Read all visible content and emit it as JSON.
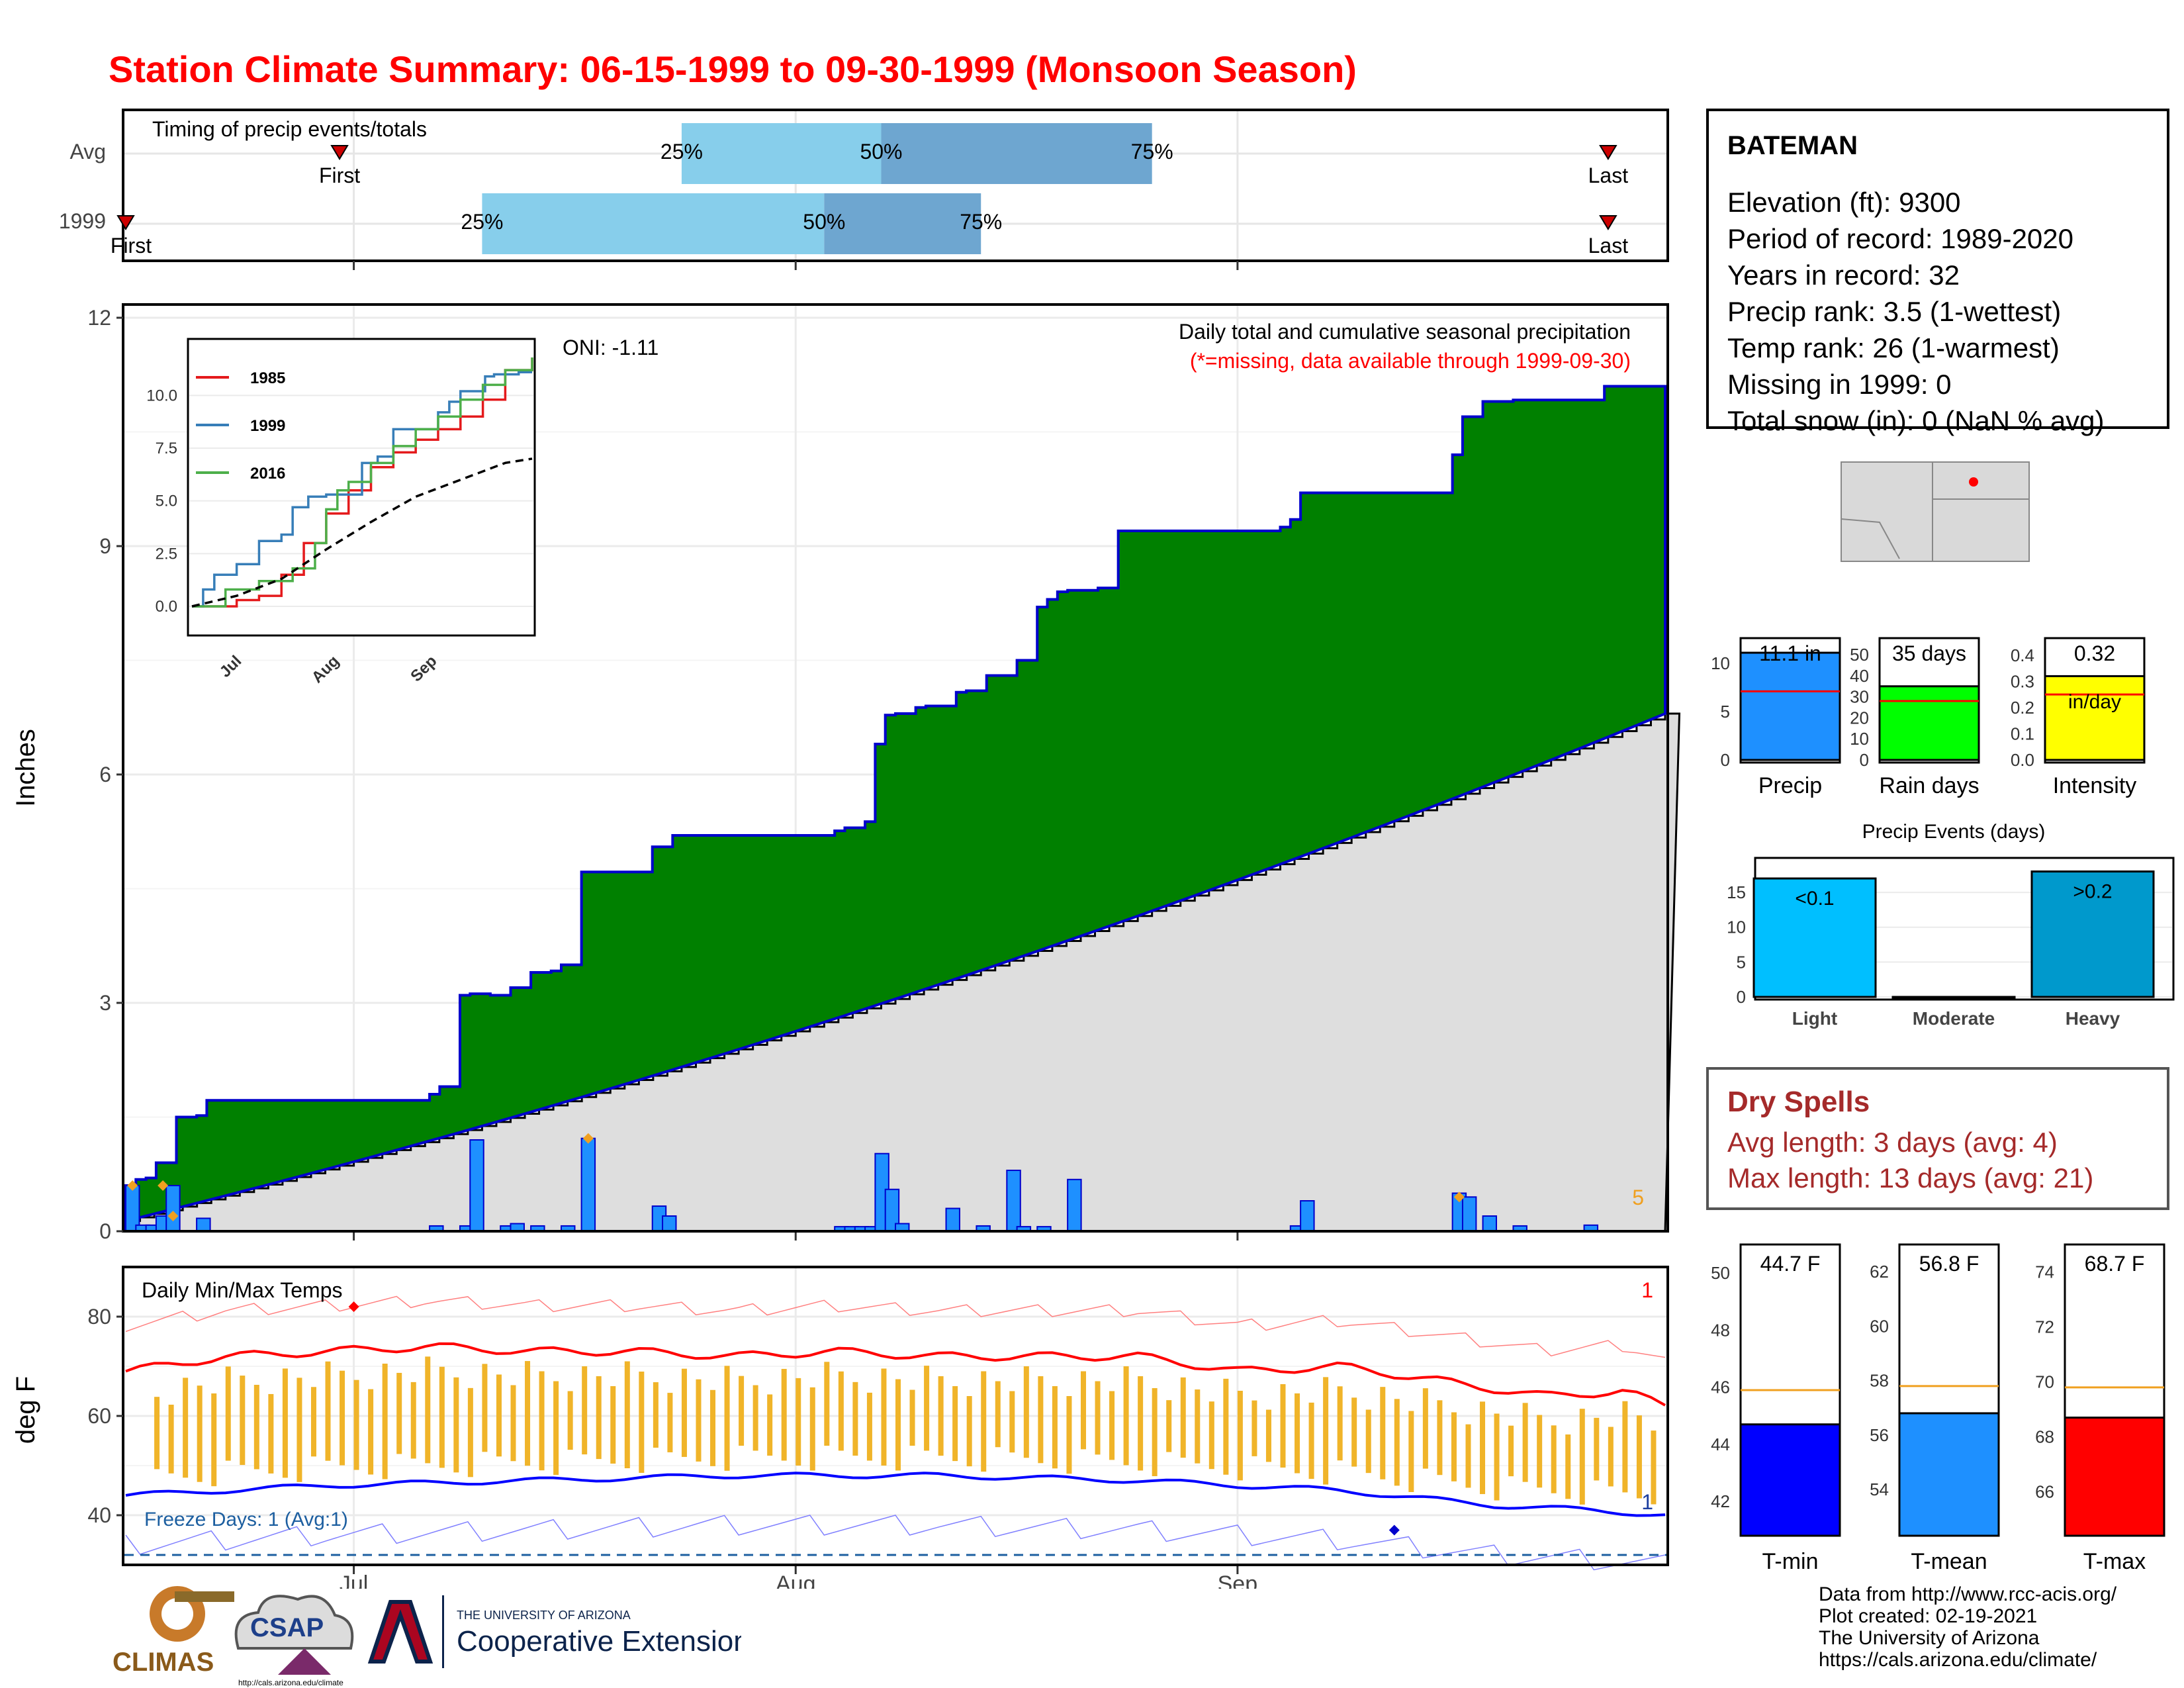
{
  "title": "Station Climate Summary: 06-15-1999 to 09-30-1999 (Monsoon Season)",
  "colors": {
    "title": "#ff0000",
    "cumulative_fill": "#008000",
    "cumulative_line": "#0000cc",
    "avg_fill": "#dedede",
    "daily_bar": "#1e90ff",
    "tmax_line": "#ff0000",
    "tmin_line": "#0000ff",
    "range_bar": "#f0b429",
    "rain_light": "#00bfff",
    "rain_heavy": "#0099cc",
    "precip_box": "#1e90ff",
    "raindays_box": "#00ff00",
    "intensity_box": "#ffff00",
    "dry_spell": "#a52a2a"
  },
  "timing_panel": {
    "label": "Timing of precip events/totals",
    "rows": [
      "Avg",
      "1999"
    ],
    "first_label": "First",
    "last_label": "Last",
    "q25_label": "25%",
    "q50_label": "50%",
    "q75_label": "75%",
    "avg": {
      "first": "06-30",
      "q25": "07-24",
      "q50": "08-07",
      "q75": "08-26",
      "last": "09-27"
    },
    "y1999": {
      "first": "06-15",
      "q25": "07-10",
      "q50": "08-03",
      "q75": "08-14",
      "last": "09-27"
    }
  },
  "precip_panel": {
    "ylabel": "Inches",
    "subtitle": "Daily total and cumulative seasonal precipitation",
    "missing_note": "(*=missing, data available through 1999-09-30)",
    "oni_label": "ONI: -1.11",
    "corner_count": "5",
    "x_ticks": [
      "Jul",
      "Aug",
      "Sep"
    ],
    "y_ticks": [
      "0",
      "3",
      "6",
      "9",
      "12"
    ]
  },
  "inset": {
    "legend": [
      "1985",
      "1999",
      "2016"
    ],
    "y_ticks": [
      "0.0",
      "2.5",
      "5.0",
      "7.5",
      "10.0"
    ],
    "x_ticks": [
      "Jul",
      "Aug",
      "Sep"
    ]
  },
  "temp_panel": {
    "ylabel": "deg F",
    "label": "Daily Min/Max Temps",
    "freeze_label": "Freeze Days: 1 (Avg:1)",
    "record_high_count": "1",
    "record_low_count": "1",
    "y_ticks": [
      "40",
      "60",
      "80"
    ],
    "x_ticks": [
      "Jul",
      "Aug",
      "Sep"
    ]
  },
  "station": {
    "name": "BATEMAN",
    "lines": [
      "Elevation (ft): 9300",
      "Period of record: 1989-2020",
      "Years in record: 32",
      "Precip rank: 3.5 (1-wettest)",
      "Temp rank: 26 (1-warmest)",
      "Missing in 1999: 0",
      "Total snow (in): 0 (NaN % avg)"
    ]
  },
  "mini_bars": {
    "precip": {
      "label": "Precip",
      "value_label": "11.1 in",
      "ticks": [
        "0",
        "5",
        "10"
      ]
    },
    "raindays": {
      "label": "Rain days",
      "value_label": "35 days",
      "ticks": [
        "0",
        "10",
        "20",
        "30",
        "40",
        "50"
      ]
    },
    "intensity": {
      "label": "Intensity",
      "value_label": "0.32",
      "unit_label": "in/day",
      "ticks": [
        "0.0",
        "0.1",
        "0.2",
        "0.3",
        "0.4"
      ]
    }
  },
  "events": {
    "title": "Precip Events (days)",
    "categories": [
      "Light",
      "Moderate",
      "Heavy"
    ],
    "bar_labels": [
      "<0.1",
      "",
      ">0.2"
    ],
    "ticks": [
      "0",
      "5",
      "10",
      "15"
    ]
  },
  "dry_spells": {
    "title": "Dry Spells",
    "avg_line": "Avg length: 3 days (avg: 4)",
    "max_line": "Max length: 13 days (avg: 21)"
  },
  "temp_bars": {
    "tmin": {
      "label": "T-min",
      "value_label": "44.7 F",
      "ticks": [
        "42",
        "44",
        "46",
        "48",
        "50"
      ]
    },
    "tmean": {
      "label": "T-mean",
      "value_label": "56.8 F",
      "ticks": [
        "54",
        "56",
        "58",
        "60",
        "62"
      ]
    },
    "tmax": {
      "label": "T-max",
      "value_label": "68.7 F",
      "ticks": [
        "66",
        "68",
        "70",
        "72",
        "74"
      ]
    }
  },
  "credits": [
    "Data from http://www.rcc-acis.org/",
    "Plot created: 02-19-2021",
    "The University of Arizona",
    "https://cals.arizona.edu/climate/"
  ],
  "logos": {
    "climas": "CLIMAS",
    "csap": "CSAP",
    "csap_url": "http://cals.arizona.edu/climate",
    "ua_small": "THE UNIVERSITY OF ARIZONA",
    "ua_ext": "Cooperative Extension"
  },
  "chart_data": {
    "type": "area",
    "title": "Station Climate Summary: 06-15-1999 to 09-30-1999 (Monsoon Season)",
    "start_date": "1999-06-15",
    "end_date": "1999-09-30",
    "ylabel": "Inches",
    "ylim": [
      0,
      12
    ],
    "cumulative_1999_steps": [
      [
        0,
        0.6
      ],
      [
        1,
        0.68
      ],
      [
        2,
        0.7
      ],
      [
        3,
        0.9
      ],
      [
        5,
        1.5
      ],
      [
        7,
        1.52
      ],
      [
        8,
        1.72
      ],
      [
        30,
        1.8
      ],
      [
        31,
        1.9
      ],
      [
        33,
        3.1
      ],
      [
        34,
        3.12
      ],
      [
        36,
        3.1
      ],
      [
        38,
        3.2
      ],
      [
        40,
        3.4
      ],
      [
        42,
        3.42
      ],
      [
        43,
        3.5
      ],
      [
        45,
        4.72
      ],
      [
        52,
        5.05
      ],
      [
        54,
        5.2
      ],
      [
        70,
        5.26
      ],
      [
        71,
        5.3
      ],
      [
        73,
        5.38
      ],
      [
        74,
        6.4
      ],
      [
        75,
        6.78
      ],
      [
        76,
        6.8
      ],
      [
        78,
        6.88
      ],
      [
        79,
        6.9
      ],
      [
        82,
        7.08
      ],
      [
        83,
        7.1
      ],
      [
        85,
        7.3
      ],
      [
        88,
        7.5
      ],
      [
        90,
        8.2
      ],
      [
        91,
        8.3
      ],
      [
        92,
        8.4
      ],
      [
        93,
        8.42
      ],
      [
        96,
        8.45
      ],
      [
        98,
        9.2
      ],
      [
        114,
        9.25
      ],
      [
        115,
        9.35
      ],
      [
        116,
        9.7
      ],
      [
        131,
        10.2
      ],
      [
        132,
        10.7
      ],
      [
        134,
        10.9
      ],
      [
        137,
        10.92
      ],
      [
        146,
        11.1
      ],
      [
        152,
        11.1
      ]
    ],
    "average_cumulative_end": 6.8,
    "daily_precip": [
      [
        0,
        0.6
      ],
      [
        1,
        0.08
      ],
      [
        2,
        0.08
      ],
      [
        3,
        0.2
      ],
      [
        4,
        0.6
      ],
      [
        7,
        0.17
      ],
      [
        30,
        0.07
      ],
      [
        33,
        0.07
      ],
      [
        34,
        1.2
      ],
      [
        37,
        0.07
      ],
      [
        38,
        0.1
      ],
      [
        40,
        0.07
      ],
      [
        43,
        0.07
      ],
      [
        45,
        1.22
      ],
      [
        52,
        0.33
      ],
      [
        53,
        0.2
      ],
      [
        70,
        0.06
      ],
      [
        71,
        0.06
      ],
      [
        72,
        0.06
      ],
      [
        73,
        0.06
      ],
      [
        74,
        1.02
      ],
      [
        75,
        0.55
      ],
      [
        76,
        0.1
      ],
      [
        81,
        0.3
      ],
      [
        84,
        0.07
      ],
      [
        87,
        0.8
      ],
      [
        88,
        0.06
      ],
      [
        90,
        0.06
      ],
      [
        93,
        0.68
      ],
      [
        115,
        0.07
      ],
      [
        116,
        0.4
      ],
      [
        131,
        0.5
      ],
      [
        132,
        0.45
      ],
      [
        134,
        0.2
      ],
      [
        137,
        0.07
      ],
      [
        144,
        0.08
      ]
    ],
    "inset_series": [
      {
        "name": "1985",
        "x_days": [
          0,
          20,
          30,
          40,
          50,
          60,
          70,
          80,
          90,
          100,
          110,
          120,
          130,
          140,
          152
        ],
        "values": [
          0,
          0.3,
          0.5,
          1.5,
          3.0,
          4.4,
          5.5,
          6.6,
          7.3,
          7.9,
          8.4,
          9.0,
          9.8,
          11.2,
          11.8
        ]
      },
      {
        "name": "1999",
        "x_days": [
          0,
          5,
          10,
          20,
          30,
          40,
          45,
          52,
          60,
          70,
          76,
          83,
          90,
          100,
          110,
          115,
          120,
          131,
          135,
          146,
          152
        ],
        "values": [
          0,
          0.8,
          1.5,
          2.0,
          3.1,
          3.4,
          4.7,
          5.2,
          5.3,
          5.3,
          6.8,
          7.1,
          8.4,
          8.4,
          9.2,
          9.7,
          10.2,
          10.9,
          11.0,
          11.1,
          11.1
        ]
      },
      {
        "name": "2016",
        "x_days": [
          0,
          15,
          30,
          45,
          55,
          60,
          65,
          70,
          80,
          90,
          100,
          110,
          120,
          130,
          140,
          152
        ],
        "values": [
          0,
          0.8,
          1.2,
          1.8,
          3.0,
          4.6,
          5.5,
          5.9,
          6.8,
          7.6,
          8.4,
          9.0,
          9.8,
          10.5,
          11.2,
          11.8
        ]
      },
      {
        "name": "Avg",
        "x_days": [
          0,
          20,
          40,
          60,
          80,
          100,
          120,
          140,
          152
        ],
        "values": [
          0,
          0.5,
          1.3,
          2.7,
          4.0,
          5.2,
          6.0,
          6.8,
          7.0
        ]
      }
    ],
    "temperature": {
      "ylabel": "deg F",
      "ylim": [
        30,
        90
      ],
      "tmax_smoothed": [
        [
          0,
          69
        ],
        [
          10,
          72
        ],
        [
          20,
          73
        ],
        [
          30,
          74
        ],
        [
          40,
          73
        ],
        [
          50,
          73
        ],
        [
          60,
          72
        ],
        [
          70,
          73
        ],
        [
          80,
          72
        ],
        [
          90,
          72
        ],
        [
          100,
          72
        ],
        [
          110,
          69
        ],
        [
          120,
          70
        ],
        [
          130,
          67
        ],
        [
          140,
          64
        ],
        [
          148,
          65
        ],
        [
          152,
          62
        ]
      ],
      "tmin_smoothed": [
        [
          0,
          44
        ],
        [
          10,
          45
        ],
        [
          20,
          46
        ],
        [
          40,
          47
        ],
        [
          60,
          48
        ],
        [
          80,
          48
        ],
        [
          100,
          47
        ],
        [
          120,
          45
        ],
        [
          135,
          42
        ],
        [
          145,
          41
        ],
        [
          152,
          40
        ]
      ],
      "freeze_line": 32
    },
    "summary_bars": {
      "precip_in": 11.1,
      "rain_days": 35,
      "intensity_in_per_day": 0.32,
      "tmin_F": 44.7,
      "tmean_F": 56.8,
      "tmax_F": 68.7,
      "light_days": 17,
      "moderate_days": 0,
      "heavy_days": 18
    }
  }
}
